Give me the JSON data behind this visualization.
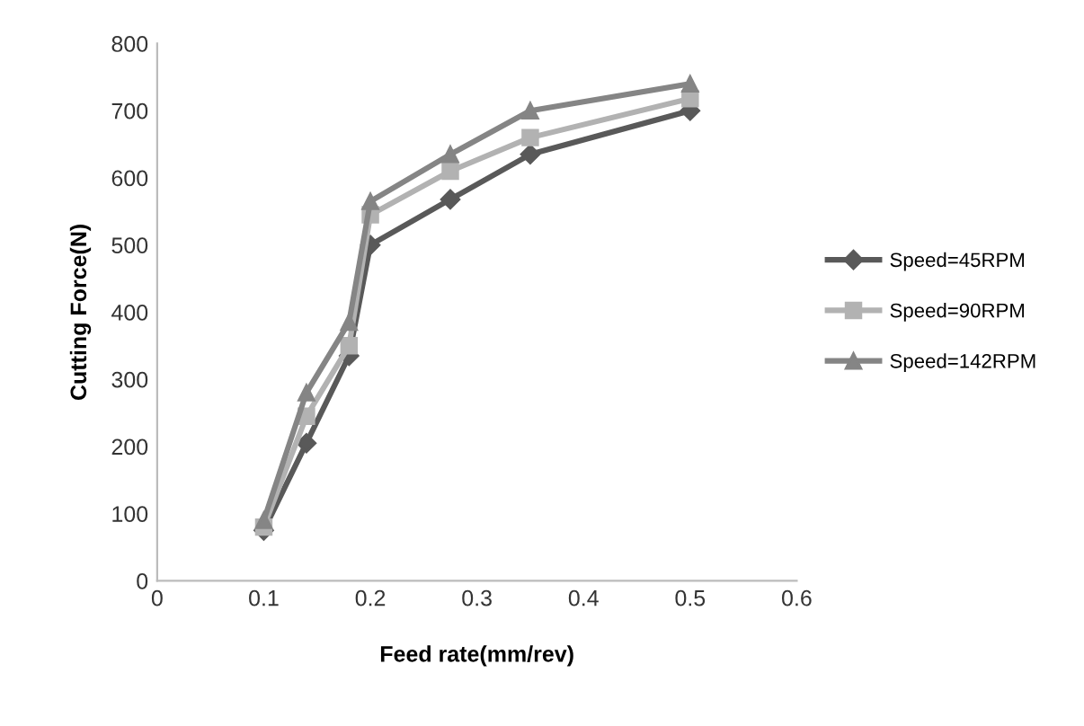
{
  "chart_data": {
    "type": "line",
    "xlabel": "Feed rate(mm/rev)",
    "ylabel": "Cutting Force(N)",
    "x": [
      0.1,
      0.14,
      0.18,
      0.2,
      0.275,
      0.35,
      0.5
    ],
    "series": [
      {
        "name": "Speed=45RPM",
        "color": "#595959",
        "marker": "diamond",
        "values": [
          75,
          205,
          335,
          500,
          568,
          635,
          700
        ]
      },
      {
        "name": "Speed=90RPM",
        "color": "#b2b2b2",
        "marker": "square",
        "values": [
          80,
          245,
          350,
          545,
          610,
          660,
          718
        ]
      },
      {
        "name": "Speed=142RPM",
        "color": "#858585",
        "marker": "triangle",
        "values": [
          90,
          280,
          385,
          565,
          635,
          700,
          740
        ]
      }
    ],
    "xlim": [
      0,
      0.6
    ],
    "xticks": [
      {
        "value": 0,
        "label": "0"
      },
      0.1,
      0.2,
      0.3,
      0.4,
      0.5,
      0.6
    ],
    "ylim": [
      0,
      800
    ],
    "yticks": [
      0,
      100,
      200,
      300,
      400,
      500,
      600,
      700,
      800
    ],
    "grid": false,
    "legend": "right",
    "line_style": "solid"
  }
}
